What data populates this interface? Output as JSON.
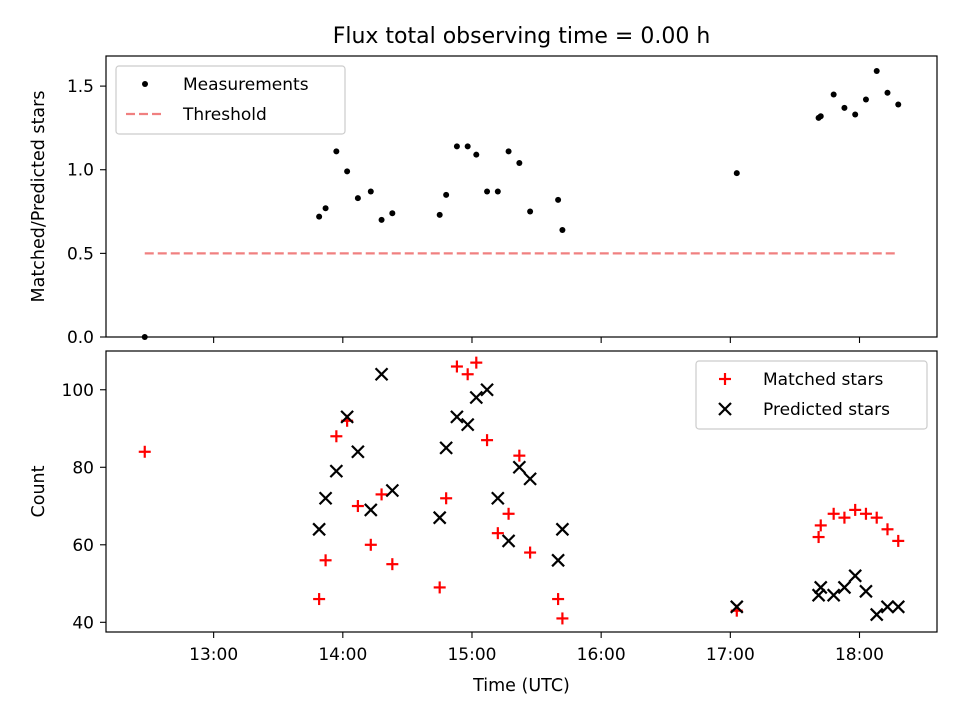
{
  "title": "Flux total observing time = 0.00 h",
  "xlabel": "Time (UTC)",
  "chart_data": [
    {
      "type": "scatter",
      "ylabel": "Matched/Predicted stars",
      "xlim": [
        "12:10",
        "18:36"
      ],
      "ylim": [
        0,
        1.68
      ],
      "yticks": [
        "0.0",
        "0.5",
        "1.0",
        "1.5"
      ],
      "legend_position": "top-left",
      "series": [
        {
          "name": "Measurements",
          "color": "#000000",
          "marker": "dot",
          "points": [
            [
              "12:28",
              0.0
            ],
            [
              "13:49",
              0.72
            ],
            [
              "13:52",
              0.77
            ],
            [
              "13:57",
              1.11
            ],
            [
              "14:02",
              0.99
            ],
            [
              "14:07",
              0.83
            ],
            [
              "14:13",
              0.87
            ],
            [
              "14:18",
              0.7
            ],
            [
              "14:23",
              0.74
            ],
            [
              "14:45",
              0.73
            ],
            [
              "14:48",
              0.85
            ],
            [
              "14:53",
              1.14
            ],
            [
              "14:58",
              1.14
            ],
            [
              "15:02",
              1.09
            ],
            [
              "15:07",
              0.87
            ],
            [
              "15:12",
              0.87
            ],
            [
              "15:17",
              1.11
            ],
            [
              "15:22",
              1.04
            ],
            [
              "15:27",
              0.75
            ],
            [
              "15:40",
              0.82
            ],
            [
              "15:42",
              0.64
            ],
            [
              "17:03",
              0.98
            ],
            [
              "17:41",
              1.31
            ],
            [
              "17:42",
              1.32
            ],
            [
              "17:48",
              1.45
            ],
            [
              "17:53",
              1.37
            ],
            [
              "17:58",
              1.33
            ],
            [
              "18:03",
              1.42
            ],
            [
              "18:08",
              1.59
            ],
            [
              "18:13",
              1.46
            ],
            [
              "18:18",
              1.39
            ]
          ]
        },
        {
          "name": "Threshold",
          "color": "#f08080",
          "style": "dashed",
          "points": [
            [
              "12:28",
              0.5
            ],
            [
              "18:18",
              0.5
            ]
          ]
        }
      ]
    },
    {
      "type": "scatter",
      "ylabel": "Count",
      "xlim": [
        "12:10",
        "18:36"
      ],
      "ylim": [
        37.5,
        110
      ],
      "yticks": [
        "40",
        "60",
        "80",
        "100"
      ],
      "xticks": [
        "13:00",
        "14:00",
        "15:00",
        "16:00",
        "17:00",
        "18:00"
      ],
      "legend_position": "top-right",
      "series": [
        {
          "name": "Matched stars",
          "color": "#ff0000",
          "marker": "plus",
          "points": [
            [
              "12:28",
              84
            ],
            [
              "13:49",
              46
            ],
            [
              "13:52",
              56
            ],
            [
              "13:57",
              88
            ],
            [
              "14:02",
              92
            ],
            [
              "14:07",
              70
            ],
            [
              "14:13",
              60
            ],
            [
              "14:18",
              73
            ],
            [
              "14:23",
              55
            ],
            [
              "14:45",
              49
            ],
            [
              "14:48",
              72
            ],
            [
              "14:53",
              106
            ],
            [
              "14:58",
              104
            ],
            [
              "15:02",
              107
            ],
            [
              "15:07",
              87
            ],
            [
              "15:12",
              63
            ],
            [
              "15:17",
              68
            ],
            [
              "15:22",
              83
            ],
            [
              "15:27",
              58
            ],
            [
              "15:40",
              46
            ],
            [
              "15:42",
              41
            ],
            [
              "17:03",
              43
            ],
            [
              "17:41",
              62
            ],
            [
              "17:42",
              65
            ],
            [
              "17:48",
              68
            ],
            [
              "17:53",
              67
            ],
            [
              "17:58",
              69
            ],
            [
              "18:03",
              68
            ],
            [
              "18:08",
              67
            ],
            [
              "18:13",
              64
            ],
            [
              "18:18",
              61
            ]
          ]
        },
        {
          "name": "Predicted stars",
          "color": "#000000",
          "marker": "x",
          "points": [
            [
              "13:49",
              64
            ],
            [
              "13:52",
              72
            ],
            [
              "13:57",
              79
            ],
            [
              "14:02",
              93
            ],
            [
              "14:07",
              84
            ],
            [
              "14:13",
              69
            ],
            [
              "14:18",
              104
            ],
            [
              "14:23",
              74
            ],
            [
              "14:45",
              67
            ],
            [
              "14:48",
              85
            ],
            [
              "14:53",
              93
            ],
            [
              "14:58",
              91
            ],
            [
              "15:02",
              98
            ],
            [
              "15:07",
              100
            ],
            [
              "15:12",
              72
            ],
            [
              "15:17",
              61
            ],
            [
              "15:22",
              80
            ],
            [
              "15:27",
              77
            ],
            [
              "15:40",
              56
            ],
            [
              "15:42",
              64
            ],
            [
              "17:03",
              44
            ],
            [
              "17:41",
              47
            ],
            [
              "17:42",
              49
            ],
            [
              "17:48",
              47
            ],
            [
              "17:53",
              49
            ],
            [
              "17:58",
              52
            ],
            [
              "18:03",
              48
            ],
            [
              "18:08",
              42
            ],
            [
              "18:13",
              44
            ],
            [
              "18:18",
              44
            ]
          ]
        }
      ]
    }
  ]
}
